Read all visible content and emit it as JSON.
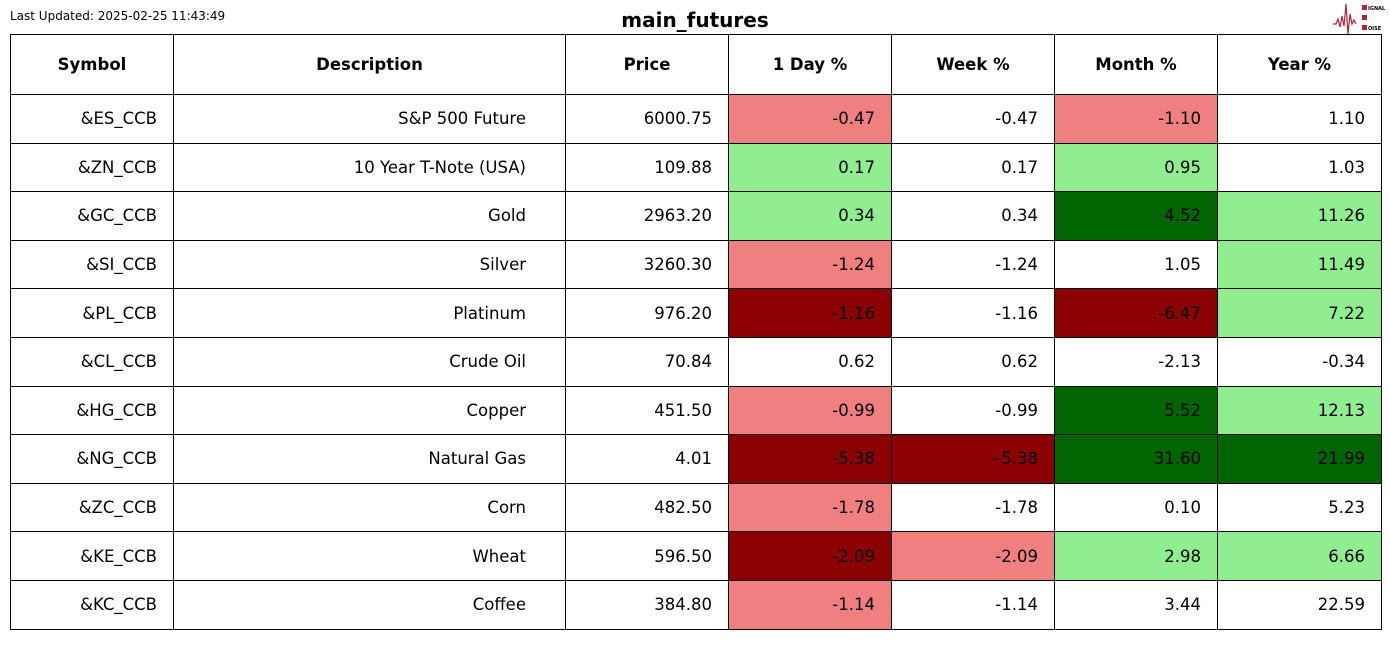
{
  "last_updated": "Last Updated: 2025-02-25 11:43:49",
  "title": "main_futures",
  "logo": {
    "text": "SIGNAL 2 NOISE"
  },
  "colors": {
    "lightcoral": "#f08080",
    "lightgreen": "#90ee90",
    "darkgreen": "#006400",
    "darkred": "#8b0000",
    "white": "#ffffff"
  },
  "chart_data": {
    "type": "table",
    "columns": [
      "Symbol",
      "Description",
      "Price",
      "1 Day %",
      "Week %",
      "Month %",
      "Year %"
    ],
    "rows": [
      [
        "&ES_CCB",
        "S&P 500 Future",
        "6000.75",
        "-0.47",
        "-0.47",
        "-1.10",
        "1.10"
      ],
      [
        "&ZN_CCB",
        "10 Year T-Note (USA)",
        "109.88",
        "0.17",
        "0.17",
        "0.95",
        "1.03"
      ],
      [
        "&GC_CCB",
        "Gold",
        "2963.20",
        "0.34",
        "0.34",
        "4.52",
        "11.26"
      ],
      [
        "&SI_CCB",
        "Silver",
        "3260.30",
        "-1.24",
        "-1.24",
        "1.05",
        "11.49"
      ],
      [
        "&PL_CCB",
        "Platinum",
        "976.20",
        "-1.16",
        "-1.16",
        "-6.47",
        "7.22"
      ],
      [
        "&CL_CCB",
        "Crude Oil",
        "70.84",
        "0.62",
        "0.62",
        "-2.13",
        "-0.34"
      ],
      [
        "&HG_CCB",
        "Copper",
        "451.50",
        "-0.99",
        "-0.99",
        "5.52",
        "12.13"
      ],
      [
        "&NG_CCB",
        "Natural Gas",
        "4.01",
        "-5.38",
        "-5.38",
        "31.60",
        "21.99"
      ],
      [
        "&ZC_CCB",
        "Corn",
        "482.50",
        "-1.78",
        "-1.78",
        "0.10",
        "5.23"
      ],
      [
        "&KE_CCB",
        "Wheat",
        "596.50",
        "-2.09",
        "-2.09",
        "2.98",
        "6.66"
      ],
      [
        "&KC_CCB",
        "Coffee",
        "384.80",
        "-1.14",
        "-1.14",
        "3.44",
        "22.59"
      ]
    ],
    "cell_colors": [
      [
        "white",
        "lightcoral",
        "white",
        "lightcoral",
        "white"
      ],
      [
        "white",
        "lightgreen",
        "white",
        "lightgreen",
        "white"
      ],
      [
        "white",
        "lightgreen",
        "white",
        "darkgreen",
        "lightgreen"
      ],
      [
        "white",
        "lightcoral",
        "white",
        "white",
        "lightgreen"
      ],
      [
        "white",
        "darkred",
        "white",
        "darkred",
        "lightgreen"
      ],
      [
        "white",
        "white",
        "white",
        "white",
        "white"
      ],
      [
        "white",
        "lightcoral",
        "white",
        "darkgreen",
        "lightgreen"
      ],
      [
        "white",
        "darkred",
        "darkred",
        "darkgreen",
        "darkgreen"
      ],
      [
        "white",
        "lightcoral",
        "white",
        "white",
        "white"
      ],
      [
        "white",
        "darkred",
        "lightcoral",
        "lightgreen",
        "lightgreen"
      ],
      [
        "white",
        "lightcoral",
        "white",
        "white",
        "white"
      ]
    ]
  }
}
